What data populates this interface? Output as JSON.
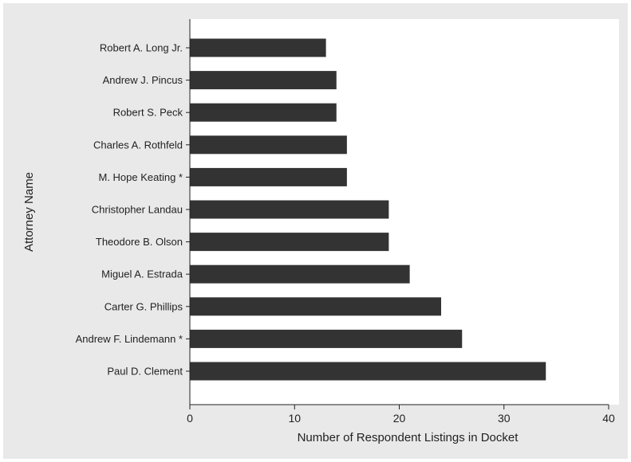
{
  "chart_data": {
    "type": "bar",
    "orientation": "horizontal",
    "categories": [
      "Robert A. Long Jr.",
      "Andrew J. Pincus",
      "Robert S. Peck",
      "Charles A. Rothfeld",
      "M. Hope Keating *",
      "Christopher Landau",
      "Theodore B. Olson",
      "Miguel A. Estrada",
      "Carter G. Phillips",
      "Andrew F. Lindemann *",
      "Paul D. Clement"
    ],
    "values": [
      13,
      14,
      14,
      15,
      15,
      19,
      19,
      21,
      24,
      26,
      34
    ],
    "xlabel": "Number of Respondent Listings in Docket",
    "ylabel": "Attorney Name",
    "xlim": [
      0,
      40
    ],
    "xticks": [
      "0",
      "10",
      "20",
      "30",
      "40"
    ],
    "grid": false,
    "colors": {
      "bar": "#333333",
      "plot_background": "#ffffff",
      "outer_background": "#e9e9e9",
      "axis": "#222222"
    }
  }
}
